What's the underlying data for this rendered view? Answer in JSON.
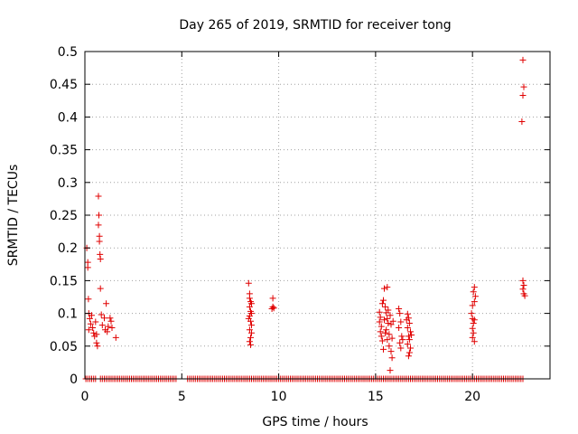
{
  "chart_data": {
    "type": "scatter",
    "title": "Day 265 of 2019, SRMTID for receiver tong",
    "xlabel": "GPS time / hours",
    "ylabel": "SRMTID / TECUs",
    "xlim": [
      0,
      24
    ],
    "ylim": [
      0,
      0.5
    ],
    "xticks": [
      0,
      5,
      10,
      15,
      20
    ],
    "xtick_labels": [
      "0",
      "5",
      "10",
      "15",
      "20"
    ],
    "yticks": [
      0,
      0.05,
      0.1,
      0.15,
      0.2,
      0.25,
      0.3,
      0.35,
      0.4,
      0.45,
      0.5
    ],
    "ytick_labels": [
      "0",
      "0.05",
      "0.1",
      "0.15",
      "0.2",
      "0.25",
      "0.3",
      "0.35",
      "0.4",
      "0.45",
      "0.5"
    ],
    "grid": true,
    "marker": "+",
    "color": "#e00000",
    "zero_segments": [
      [
        0.05,
        0.6
      ],
      [
        0.8,
        4.7
      ],
      [
        5.3,
        13.95
      ],
      [
        14.0,
        22.6
      ]
    ],
    "zero_step": 0.1,
    "points": [
      [
        0.1,
        0.2
      ],
      [
        0.15,
        0.178
      ],
      [
        0.15,
        0.17
      ],
      [
        0.18,
        0.122
      ],
      [
        0.2,
        0.1
      ],
      [
        0.25,
        0.092
      ],
      [
        0.3,
        0.084
      ],
      [
        0.2,
        0.075
      ],
      [
        0.35,
        0.097
      ],
      [
        0.4,
        0.078
      ],
      [
        0.45,
        0.07
      ],
      [
        0.5,
        0.065
      ],
      [
        0.55,
        0.087
      ],
      [
        0.6,
        0.055
      ],
      [
        0.65,
        0.05
      ],
      [
        0.6,
        0.068
      ],
      [
        0.7,
        0.279
      ],
      [
        0.72,
        0.25
      ],
      [
        0.7,
        0.235
      ],
      [
        0.75,
        0.218
      ],
      [
        0.75,
        0.21
      ],
      [
        0.78,
        0.19
      ],
      [
        0.8,
        0.183
      ],
      [
        0.8,
        0.138
      ],
      [
        0.85,
        0.098
      ],
      [
        0.9,
        0.082
      ],
      [
        1.0,
        0.093
      ],
      [
        1.05,
        0.075
      ],
      [
        1.1,
        0.115
      ],
      [
        1.15,
        0.072
      ],
      [
        1.2,
        0.08
      ],
      [
        1.3,
        0.093
      ],
      [
        1.35,
        0.088
      ],
      [
        1.4,
        0.078
      ],
      [
        1.6,
        0.063
      ],
      [
        8.45,
        0.146
      ],
      [
        8.5,
        0.13
      ],
      [
        8.5,
        0.123
      ],
      [
        8.55,
        0.118
      ],
      [
        8.5,
        0.11
      ],
      [
        8.55,
        0.103
      ],
      [
        8.5,
        0.096
      ],
      [
        8.55,
        0.088
      ],
      [
        8.6,
        0.082
      ],
      [
        8.5,
        0.075
      ],
      [
        8.6,
        0.07
      ],
      [
        8.55,
        0.063
      ],
      [
        8.5,
        0.057
      ],
      [
        8.55,
        0.052
      ],
      [
        8.6,
        0.1
      ],
      [
        8.45,
        0.092
      ],
      [
        8.6,
        0.115
      ],
      [
        9.7,
        0.123
      ],
      [
        9.7,
        0.11
      ],
      [
        9.75,
        0.108
      ],
      [
        9.65,
        0.107
      ],
      [
        15.2,
        0.102
      ],
      [
        15.25,
        0.094
      ],
      [
        15.2,
        0.087
      ],
      [
        15.3,
        0.08
      ],
      [
        15.25,
        0.072
      ],
      [
        15.3,
        0.065
      ],
      [
        15.35,
        0.058
      ],
      [
        15.4,
        0.12
      ],
      [
        15.45,
        0.138
      ],
      [
        15.5,
        0.11
      ],
      [
        15.55,
        0.101
      ],
      [
        15.6,
        0.14
      ],
      [
        15.6,
        0.092
      ],
      [
        15.65,
        0.085
      ],
      [
        15.55,
        0.075
      ],
      [
        15.6,
        0.06
      ],
      [
        15.7,
        0.05
      ],
      [
        15.75,
        0.097
      ],
      [
        15.8,
        0.083
      ],
      [
        15.7,
        0.068
      ],
      [
        15.85,
        0.062
      ],
      [
        15.9,
        0.088
      ],
      [
        15.8,
        0.042
      ],
      [
        15.85,
        0.032
      ],
      [
        15.75,
        0.013
      ],
      [
        15.4,
        0.045
      ],
      [
        15.5,
        0.07
      ],
      [
        15.65,
        0.105
      ],
      [
        15.35,
        0.115
      ],
      [
        15.45,
        0.09
      ],
      [
        16.2,
        0.107
      ],
      [
        16.25,
        0.1
      ],
      [
        16.3,
        0.087
      ],
      [
        16.2,
        0.078
      ],
      [
        16.35,
        0.065
      ],
      [
        16.25,
        0.055
      ],
      [
        16.3,
        0.047
      ],
      [
        16.4,
        0.06
      ],
      [
        16.65,
        0.099
      ],
      [
        16.7,
        0.093
      ],
      [
        16.75,
        0.085
      ],
      [
        16.65,
        0.078
      ],
      [
        16.8,
        0.072
      ],
      [
        16.7,
        0.065
      ],
      [
        16.75,
        0.06
      ],
      [
        16.65,
        0.053
      ],
      [
        16.8,
        0.047
      ],
      [
        16.75,
        0.04
      ],
      [
        16.7,
        0.035
      ],
      [
        16.85,
        0.067
      ],
      [
        16.6,
        0.09
      ],
      [
        19.95,
        0.1
      ],
      [
        20.0,
        0.092
      ],
      [
        20.05,
        0.085
      ],
      [
        20.0,
        0.077
      ],
      [
        20.05,
        0.07
      ],
      [
        20.0,
        0.063
      ],
      [
        20.1,
        0.057
      ],
      [
        20.05,
        0.133
      ],
      [
        20.1,
        0.14
      ],
      [
        20.15,
        0.126
      ],
      [
        20.1,
        0.118
      ],
      [
        20.0,
        0.112
      ],
      [
        20.1,
        0.09
      ],
      [
        22.6,
        0.487
      ],
      [
        22.65,
        0.446
      ],
      [
        22.6,
        0.433
      ],
      [
        22.55,
        0.393
      ],
      [
        22.6,
        0.15
      ],
      [
        22.65,
        0.143
      ],
      [
        22.6,
        0.137
      ],
      [
        22.65,
        0.13
      ],
      [
        22.7,
        0.127
      ]
    ]
  }
}
